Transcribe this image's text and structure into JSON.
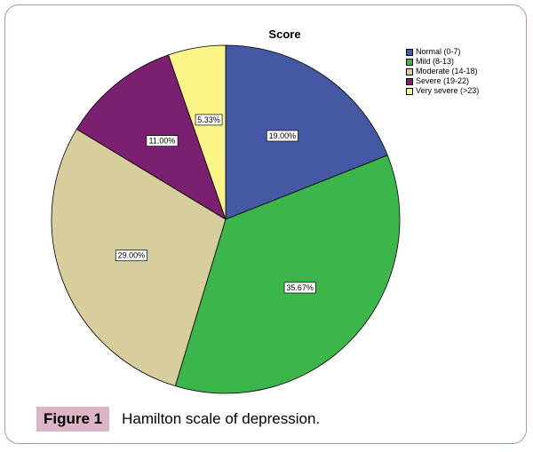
{
  "chart_data": {
    "type": "pie",
    "title": "Score",
    "slices": [
      {
        "name": "Normal (0-7)",
        "value": 19.0,
        "label": "19.00%",
        "color": "#4458a4"
      },
      {
        "name": "Mild (8-13)",
        "value": 35.67,
        "label": "35.67%",
        "color": "#3cb54a"
      },
      {
        "name": "Moderate (14-18)",
        "value": 29.0,
        "label": "29.00%",
        "color": "#d7cd9d"
      },
      {
        "name": "Severe (19-22)",
        "value": 11.0,
        "label": "11.00%",
        "color": "#7b1f70"
      },
      {
        "name": "Very severe (>23)",
        "value": 5.33,
        "label": "5.33%",
        "color": "#fbf487"
      }
    ],
    "legend_position": "top-right"
  },
  "caption": {
    "badge": "Figure 1",
    "text": "Hamilton scale of depression."
  }
}
